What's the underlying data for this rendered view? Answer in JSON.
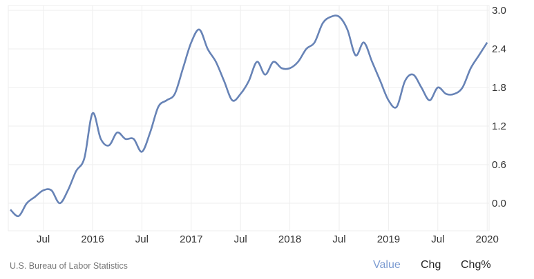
{
  "chart_data": {
    "type": "line",
    "title": "",
    "xlabel": "",
    "ylabel": "",
    "ylim": [
      -0.3,
      3.0
    ],
    "yticks": [
      "0.0",
      "0.6",
      "1.2",
      "1.8",
      "2.4",
      "3.0"
    ],
    "xticks": [
      "Jul",
      "2016",
      "Jul",
      "2017",
      "Jul",
      "2018",
      "Jul",
      "2019",
      "Jul",
      "2020"
    ],
    "start": "2015-03",
    "frequency": "monthly",
    "series": [
      {
        "name": "Value",
        "color": "#6783b6",
        "values": [
          -0.1,
          -0.2,
          0.0,
          0.1,
          0.2,
          0.2,
          0.0,
          0.2,
          0.5,
          0.7,
          1.4,
          1.0,
          0.9,
          1.1,
          1.0,
          1.0,
          0.8,
          1.1,
          1.5,
          1.6,
          1.7,
          2.1,
          2.5,
          2.7,
          2.4,
          2.2,
          1.9,
          1.6,
          1.7,
          1.9,
          2.2,
          2.0,
          2.2,
          2.1,
          2.1,
          2.2,
          2.4,
          2.5,
          2.8,
          2.9,
          2.9,
          2.7,
          2.3,
          2.5,
          2.2,
          1.9,
          1.6,
          1.5,
          1.9,
          2.0,
          1.8,
          1.6,
          1.8,
          1.7,
          1.7,
          1.8,
          2.1,
          2.3,
          2.5
        ]
      }
    ],
    "grid": true,
    "legend": "none"
  },
  "footer": {
    "source": "U.S. Bureau of Labor Statistics",
    "buttons": [
      "Value",
      "Chg",
      "Chg%"
    ],
    "active_color": "#7b9bd1"
  }
}
